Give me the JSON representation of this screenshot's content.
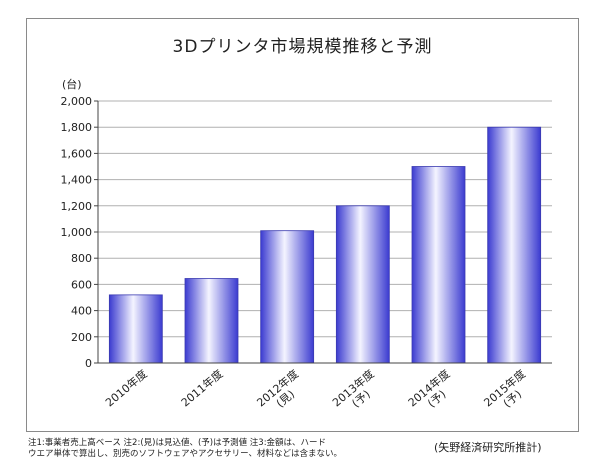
{
  "chart_data": {
    "type": "bar",
    "title": "3Dプリンタ市場規模推移と予測",
    "ylabel": "(台)",
    "xlabel": "",
    "categories": [
      [
        "2010年度"
      ],
      [
        "2011年度"
      ],
      [
        "2012年度",
        "(見)"
      ],
      [
        "2013年度",
        "(予)"
      ],
      [
        "2014年度",
        "(予)"
      ],
      [
        "2015年度",
        "(予)"
      ]
    ],
    "values": [
      520,
      645,
      1010,
      1200,
      1500,
      1800
    ],
    "ylim": [
      0,
      2000
    ],
    "yticks": [
      0,
      200,
      400,
      600,
      800,
      1000,
      1200,
      1400,
      1600,
      1800,
      2000
    ],
    "ytick_labels": [
      "0",
      "200",
      "400",
      "600",
      "800",
      "1,000",
      "1,200",
      "1,400",
      "1,600",
      "1,800",
      "2,000"
    ],
    "grid": true,
    "colors": {
      "bar_edge": "#3a3ab0",
      "bar_mid": "#f4f4ff",
      "bar_dark": "#3b3bd0",
      "grid": "#b0b0b0",
      "axis": "#444444"
    }
  },
  "footnote": [
    "注1:事業者売上高ベース 注2:(見)は見込値、(予)は予測値 注3:金額は、ハード",
    "ウエア単体で算出し、別売のソフトウェアやアクセサリー、材料などは含まない。"
  ],
  "source": "(矢野経済研究所推計)"
}
